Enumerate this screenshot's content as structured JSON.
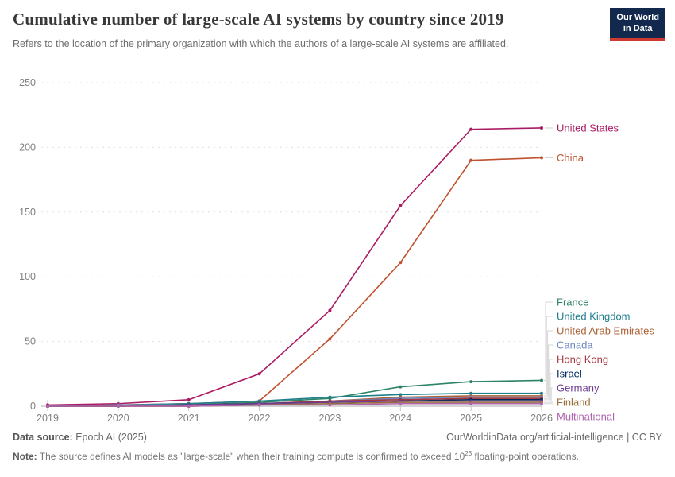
{
  "header": {
    "title": "Cumulative number of large-scale AI systems by country since 2019",
    "subtitle": "Refers to the location of the primary organization with which the authors of a large-scale AI systems are affiliated."
  },
  "logo": {
    "line1": "Our World",
    "line2": "in Data",
    "bg_color": "#12294D",
    "accent_color": "#CE3A32"
  },
  "chart_data": {
    "type": "line",
    "x": [
      2019,
      2020,
      2021,
      2022,
      2023,
      2024,
      2025,
      2026
    ],
    "xlabel": "",
    "ylabel": "",
    "ylim": [
      0,
      250
    ],
    "yticks": [
      0,
      50,
      100,
      150,
      200,
      250
    ],
    "grid": "horizontal-dashed",
    "legend_position": "right-end-labels",
    "series": [
      {
        "name": "United States",
        "color": "#AB1B63",
        "values": [
          1,
          2,
          5,
          25,
          74,
          155,
          214,
          215
        ]
      },
      {
        "name": "China",
        "color": "#C0512F",
        "values": [
          0,
          1,
          2,
          4,
          52,
          111,
          190,
          192
        ]
      },
      {
        "name": "France",
        "color": "#2C8465",
        "values": [
          0,
          0,
          1,
          3,
          6,
          15,
          19,
          20
        ]
      },
      {
        "name": "United Kingdom",
        "color": "#1D7E8C",
        "values": [
          0,
          1,
          2,
          4,
          7,
          9,
          10,
          10
        ]
      },
      {
        "name": "United Arab Emirates",
        "color": "#AC6337",
        "values": [
          0,
          0,
          0,
          1,
          4,
          7,
          8,
          8
        ]
      },
      {
        "name": "Canada",
        "color": "#6E87C0",
        "values": [
          0,
          1,
          1,
          2,
          4,
          6,
          7,
          7
        ]
      },
      {
        "name": "Hong Kong",
        "color": "#A73741",
        "values": [
          0,
          0,
          1,
          2,
          4,
          5,
          6,
          6
        ]
      },
      {
        "name": "Israel",
        "color": "#00295B",
        "values": [
          0,
          0,
          1,
          2,
          3,
          4,
          5,
          5
        ]
      },
      {
        "name": "Germany",
        "color": "#6D3E91",
        "values": [
          0,
          0,
          1,
          2,
          3,
          4,
          4,
          4
        ]
      },
      {
        "name": "Finland",
        "color": "#996D39",
        "values": [
          0,
          0,
          0,
          1,
          2,
          3,
          3,
          3
        ]
      },
      {
        "name": "Multinational",
        "color": "#AF64AE",
        "values": [
          0,
          0,
          0,
          1,
          1,
          2,
          2,
          2
        ]
      }
    ]
  },
  "footer": {
    "datasource_label": "Data source:",
    "datasource_value": "Epoch AI (2025)",
    "attribution": "OurWorldinData.org/artificial-intelligence | CC BY",
    "note_label": "Note:",
    "note_pre": "The source defines AI models as \"large-scale\" when their training compute is confirmed to exceed 10",
    "note_sup": "23",
    "note_post": " floating-point operations."
  }
}
